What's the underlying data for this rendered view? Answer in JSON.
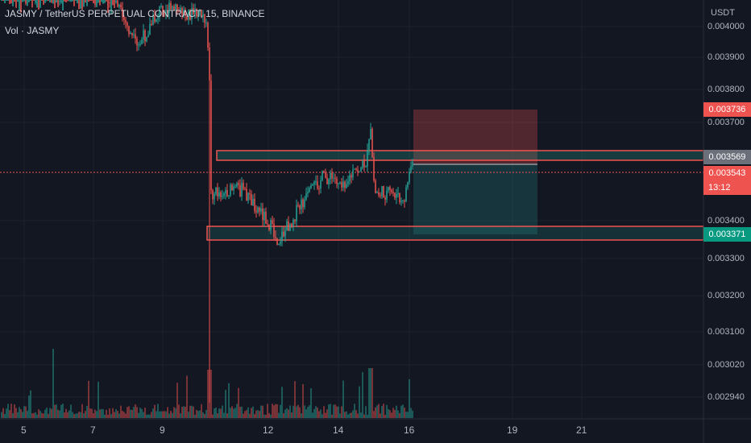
{
  "header": {
    "symbol_line": "JASMY / TetherUS PERPETUAL CONTRACT, 15, BINANCE",
    "volume_label": "Vol · JASMY"
  },
  "price_axis": {
    "currency": "USDT",
    "ticks": [
      "0.004000",
      "0.003900",
      "0.003800",
      "0.003700",
      "0.003400",
      "0.003300",
      "0.003200",
      "0.003100",
      "0.003020",
      "0.002940"
    ]
  },
  "time_axis": {
    "ticks": [
      "5",
      "7",
      "9",
      "12",
      "14",
      "16",
      "19",
      "21"
    ]
  },
  "price_tags": {
    "stop": "0.003736",
    "entry": "0.003569",
    "current": "0.003543",
    "countdown": "13:12",
    "target": "0.003371"
  },
  "colors": {
    "background": "#131722",
    "up": "#26a69a",
    "down": "#ef5350",
    "entry_tag": "#6b6f79"
  }
}
